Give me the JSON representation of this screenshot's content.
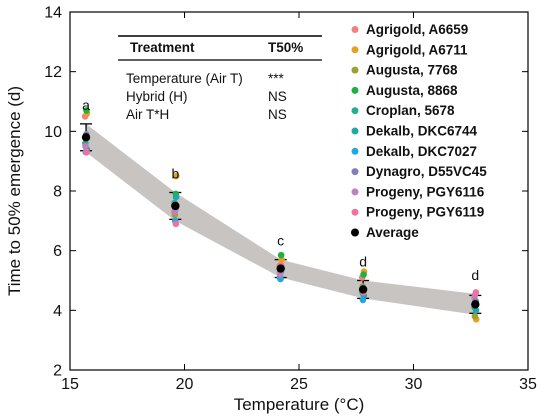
{
  "chart_data": {
    "type": "scatter",
    "xlabel": "Temperature (°C)",
    "ylabel": "Time to 50% emergence (d)",
    "xlim": [
      15,
      35
    ],
    "ylim": [
      2,
      14
    ],
    "xticks": [
      "15",
      "20",
      "25",
      "30",
      "35"
    ],
    "yticks": [
      "2",
      "4",
      "6",
      "8",
      "10",
      "12",
      "14"
    ],
    "x": [
      15.7,
      19.6,
      24.2,
      27.8,
      32.7
    ],
    "series": [
      {
        "name": "Agrigold, A6659",
        "color": "#f08080",
        "values": [
          10.5,
          7.3,
          5.5,
          5.1,
          4.4
        ]
      },
      {
        "name": "Agrigold, A6711",
        "color": "#e8a020",
        "values": [
          10.6,
          8.5,
          5.7,
          5.3,
          3.7
        ]
      },
      {
        "name": "Augusta, 7768",
        "color": "#a0a030",
        "values": [
          9.8,
          7.2,
          5.3,
          4.8,
          3.8
        ]
      },
      {
        "name": "Augusta, 8868",
        "color": "#20b040",
        "values": [
          10.7,
          7.9,
          5.85,
          5.2,
          4.3
        ]
      },
      {
        "name": "Croplan, 5678",
        "color": "#20b090",
        "values": [
          9.6,
          7.6,
          5.1,
          4.6,
          4.1
        ]
      },
      {
        "name": "Dekalb, DKC6744",
        "color": "#20a8a8",
        "values": [
          9.4,
          7.8,
          5.4,
          4.5,
          4.0
        ]
      },
      {
        "name": "Dekalb, DKC7027",
        "color": "#20a8e0",
        "values": [
          9.3,
          7.0,
          5.05,
          4.35,
          4.2
        ]
      },
      {
        "name": "Dynagro, D55VC45",
        "color": "#8080c0",
        "values": [
          9.9,
          7.4,
          5.3,
          4.75,
          4.3
        ]
      },
      {
        "name": "Progeny, PGY6116",
        "color": "#c080c0",
        "values": [
          9.5,
          7.3,
          5.2,
          4.7,
          4.5
        ]
      },
      {
        "name": "Progeny, PGY6119",
        "color": "#f070a0",
        "values": [
          9.3,
          6.9,
          5.5,
          4.6,
          4.6
        ]
      },
      {
        "name": "Average",
        "color": "#000000",
        "values": [
          9.8,
          7.5,
          5.4,
          4.7,
          4.2
        ]
      }
    ],
    "error_bars": [
      0.45,
      0.45,
      0.3,
      0.3,
      0.3
    ],
    "band": {
      "color": "#c8c4c2",
      "upper": [
        10.25,
        7.95,
        5.7,
        5.0,
        4.55
      ],
      "lower": [
        9.3,
        7.0,
        5.1,
        4.4,
        3.85
      ]
    },
    "significance_letters": [
      "a",
      "b",
      "c",
      "d",
      "d"
    ],
    "legend_position": "top-right"
  },
  "stats_table": {
    "header": [
      "Treatment",
      "T50%"
    ],
    "rows": [
      [
        "Temperature (Air T)",
        "***"
      ],
      [
        "Hybrid (H)",
        "NS"
      ],
      [
        "Air T*H",
        "NS"
      ]
    ]
  }
}
